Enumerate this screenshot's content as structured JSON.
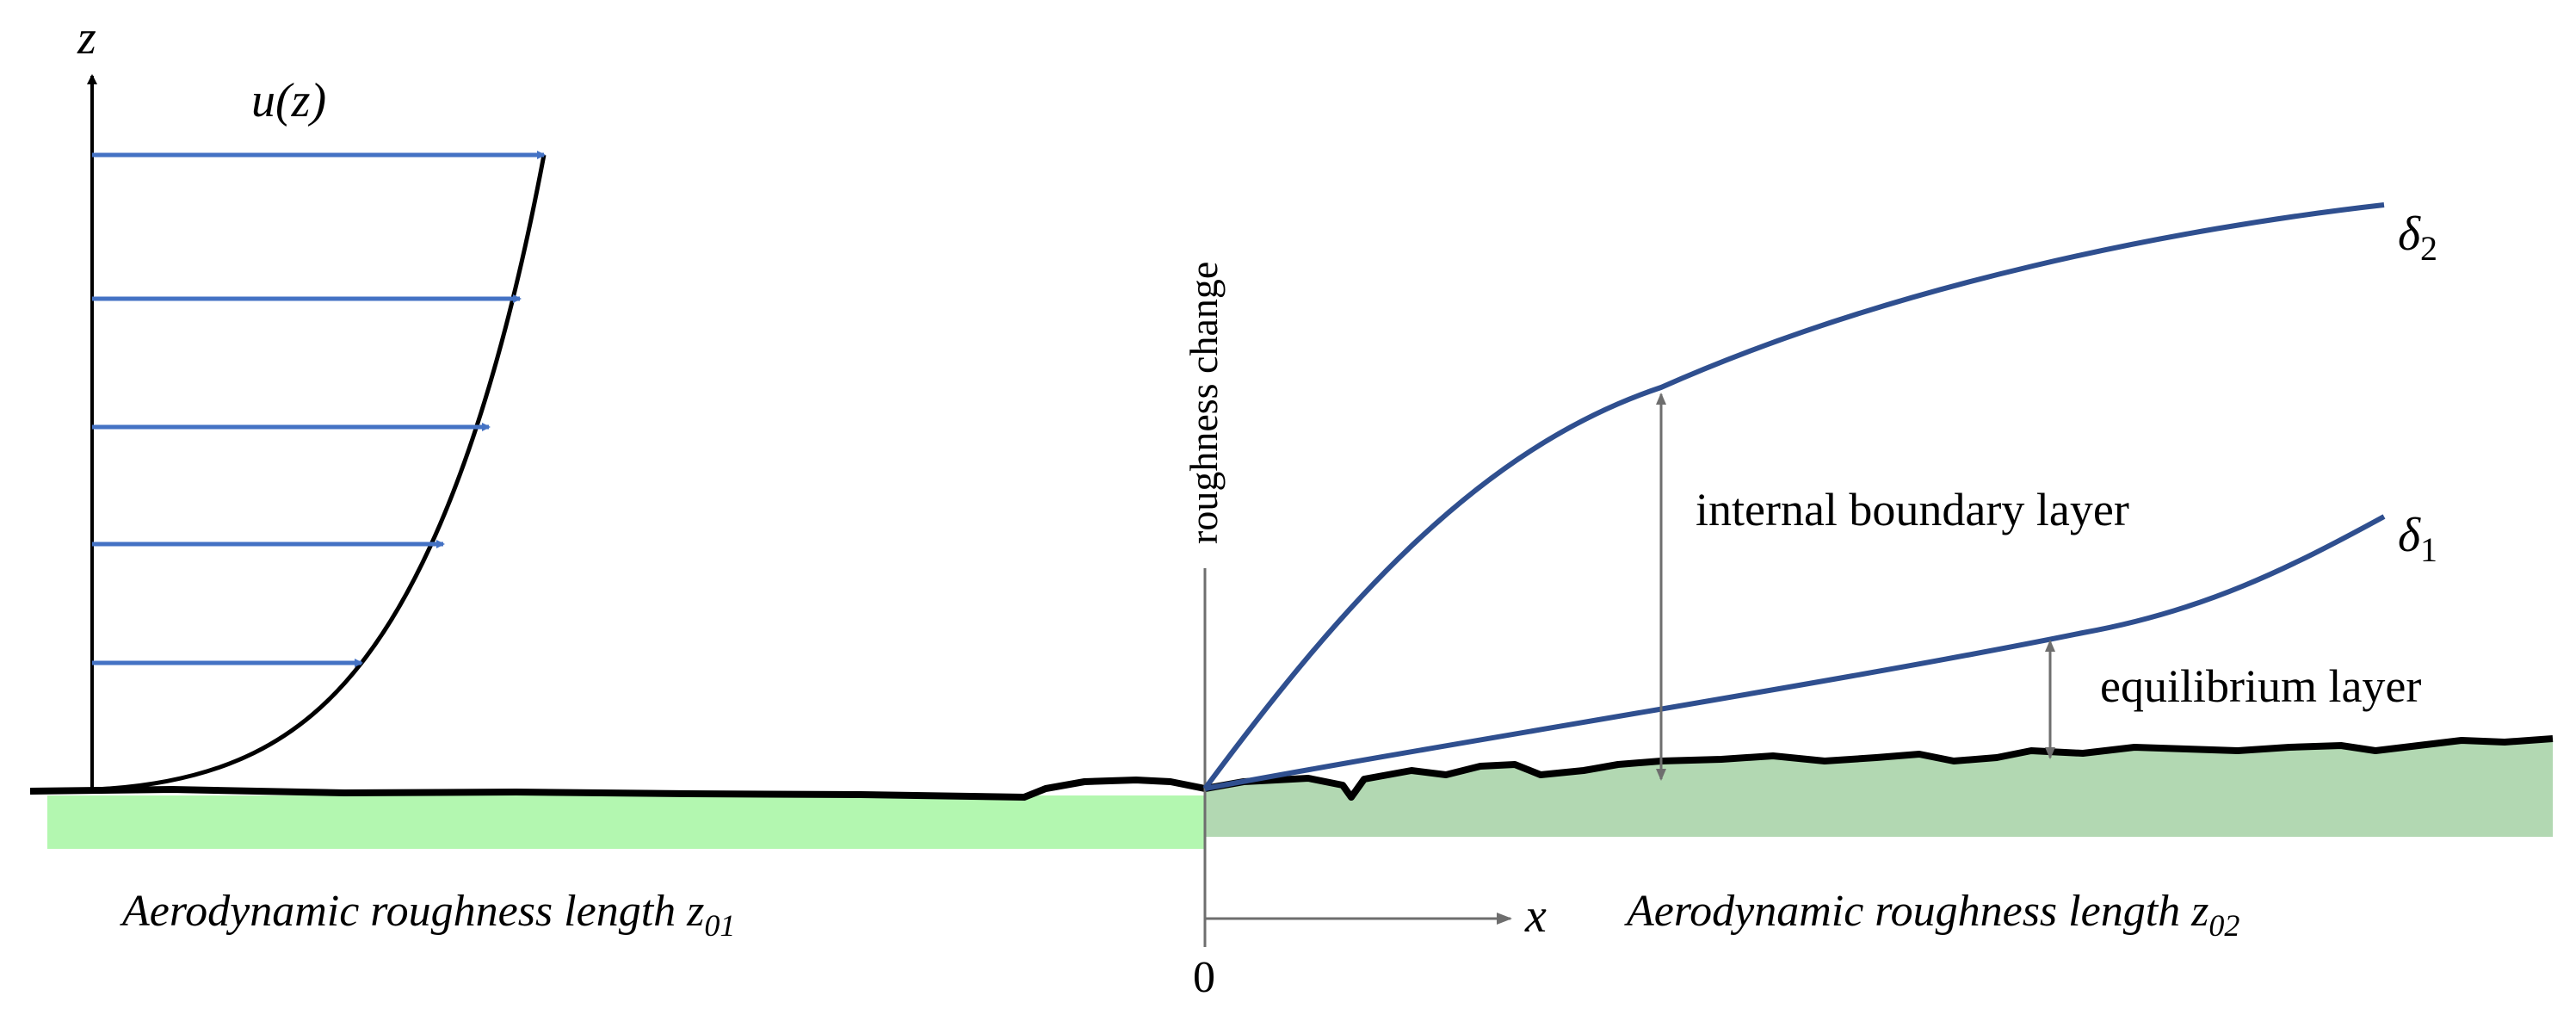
{
  "labels": {
    "z_axis": "z",
    "velocity_profile": "u(z)",
    "roughness_change": "roughness change",
    "delta2_symbol": "δ",
    "delta2_subscript": "2",
    "delta1_symbol": "δ",
    "delta1_subscript": "1",
    "internal_boundary_layer": "internal boundary layer",
    "equilibrium_layer": "equilibrium layer",
    "x_axis": "x",
    "origin": "0",
    "roughness_left_prefix": "Aerodynamic roughness length z",
    "roughness_left_subscript": "01",
    "roughness_right_prefix": "Aerodynamic roughness length z",
    "roughness_right_subscript": "02"
  },
  "colors": {
    "arrow_blue": "#4472C4",
    "layer_curve_blue": "#2F4F8F",
    "smooth_ground_green": "#B3F7B0",
    "rough_ground_green": "#B2D8B2",
    "gray_lines": "#6E6E6E"
  }
}
